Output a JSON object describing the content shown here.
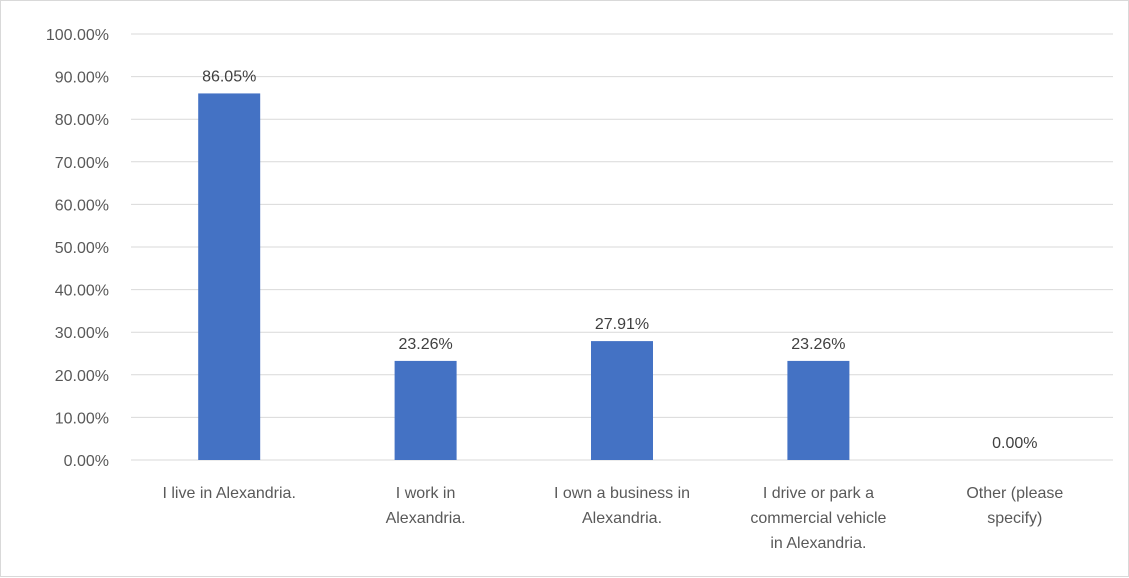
{
  "chart_data": {
    "type": "bar",
    "categories": [
      [
        "I live in Alexandria."
      ],
      [
        "I work in",
        "Alexandria."
      ],
      [
        "I own a business in",
        "Alexandria."
      ],
      [
        "I drive or park a",
        "commercial vehicle",
        "in Alexandria."
      ],
      [
        "Other (please",
        "specify)"
      ]
    ],
    "values": [
      86.05,
      23.26,
      27.91,
      23.26,
      0.0
    ],
    "data_labels": [
      "86.05%",
      "23.26%",
      "27.91%",
      "23.26%",
      "0.00%"
    ],
    "y_ticks": [
      "0.00%",
      "10.00%",
      "20.00%",
      "30.00%",
      "40.00%",
      "50.00%",
      "60.00%",
      "70.00%",
      "80.00%",
      "90.00%",
      "100.00%"
    ],
    "ylim": [
      0,
      100
    ],
    "grid": true,
    "bar_color": "#4472C4",
    "grid_color": "#d9d9d9",
    "title": "",
    "xlabel": "",
    "ylabel": ""
  }
}
